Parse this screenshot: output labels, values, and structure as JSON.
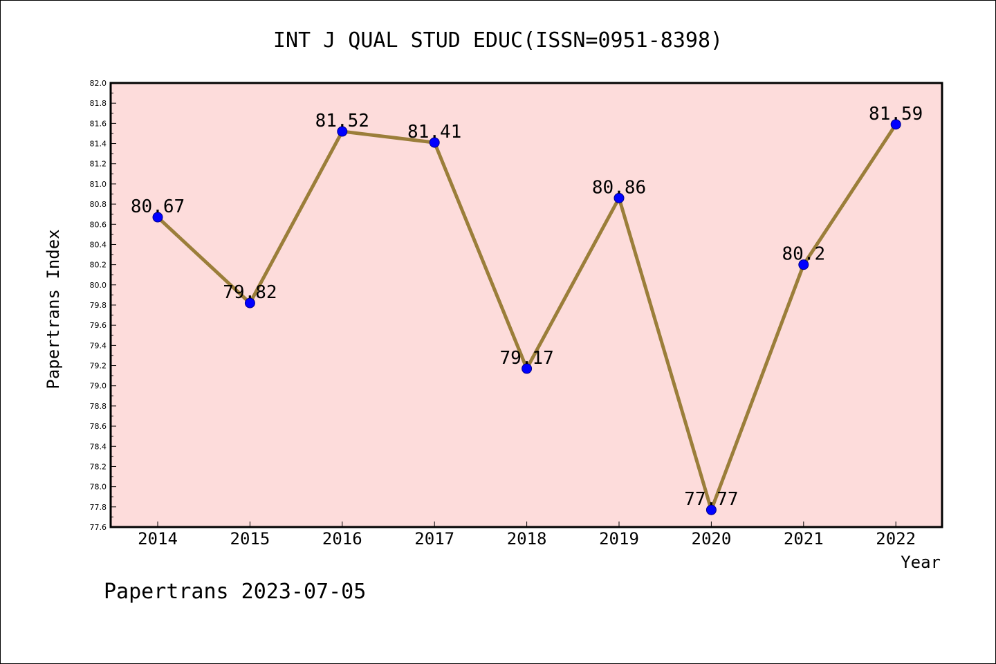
{
  "chart_data": {
    "type": "line",
    "title": "INT J QUAL STUD EDUC(ISSN=0951-8398)",
    "xlabel": "Year",
    "ylabel": "Papertrans Index",
    "categories": [
      "2014",
      "2015",
      "2016",
      "2017",
      "2018",
      "2019",
      "2020",
      "2021",
      "2022"
    ],
    "values": [
      80.67,
      79.82,
      81.52,
      81.41,
      79.17,
      80.86,
      77.77,
      80.2,
      81.59
    ],
    "data_labels": [
      "80.67",
      "79.82",
      "81.52",
      "81.41",
      "79.17",
      "80.86",
      "77.77",
      "80.2",
      "81.59"
    ],
    "ylim": [
      77.6,
      82.0
    ],
    "yticks": [
      "77.6",
      "77.8",
      "78.0",
      "78.2",
      "78.4",
      "78.6",
      "78.8",
      "79.0",
      "79.2",
      "79.4",
      "79.6",
      "79.8",
      "80.0",
      "80.2",
      "80.4",
      "80.6",
      "80.8",
      "81.0",
      "81.2",
      "81.4",
      "81.6",
      "81.8",
      "82.0"
    ],
    "grid": false,
    "legend": "none",
    "colors": {
      "plot_background": "#fddcdb",
      "line": "#9b7e3a",
      "marker": "#0000ff"
    }
  },
  "footer": "Papertrans 2023-07-05"
}
